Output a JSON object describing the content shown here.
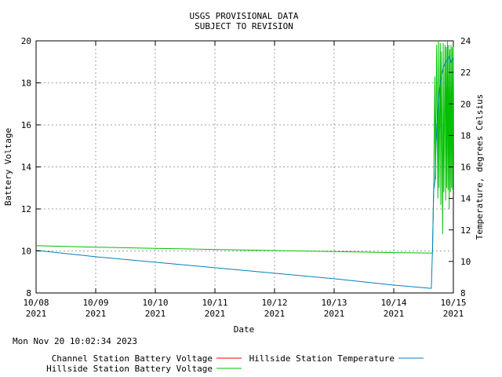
{
  "chart_data": {
    "type": "line",
    "title_lines": [
      "USGS PROVISIONAL DATA",
      "SUBJECT TO REVISION"
    ],
    "xlabel": "Date",
    "ylabel_left": "Battery Voltage",
    "ylabel_right": "Temperature, degrees Celsius",
    "x_ticks": [
      {
        "day": 0,
        "line1": "10/08",
        "line2": "2021"
      },
      {
        "day": 1,
        "line1": "10/09",
        "line2": "2021"
      },
      {
        "day": 2,
        "line1": "10/10",
        "line2": "2021"
      },
      {
        "day": 3,
        "line1": "10/11",
        "line2": "2021"
      },
      {
        "day": 4,
        "line1": "10/12",
        "line2": "2021"
      },
      {
        "day": 5,
        "line1": "10/13",
        "line2": "2021"
      },
      {
        "day": 6,
        "line1": "10/14",
        "line2": "2021"
      },
      {
        "day": 7,
        "line1": "10/15",
        "line2": "2021"
      }
    ],
    "xlim": [
      0,
      7
    ],
    "ylim_left": [
      8,
      20
    ],
    "y_ticks_left": [
      8,
      10,
      12,
      14,
      16,
      18,
      20
    ],
    "ylim_right": [
      8,
      24
    ],
    "y_ticks_right": [
      8,
      10,
      12,
      14,
      16,
      18,
      20,
      22,
      24
    ],
    "grid": true,
    "timestamp": "Mon Nov 20 10:02:34 2023",
    "series": [
      {
        "name": "Channel Station Battery Voltage",
        "color": "#ff0000",
        "axis": "left",
        "x": [],
        "y": []
      },
      {
        "name": "Hillside Station Battery Voltage",
        "color": "#00c000",
        "axis": "left",
        "x": [
          0,
          1,
          2,
          3,
          4,
          5,
          6,
          6.63,
          6.65,
          6.67,
          6.69,
          6.7,
          6.72,
          6.74,
          6.75,
          6.76,
          6.78,
          6.79,
          6.8,
          6.82,
          6.83,
          6.84,
          6.86,
          6.87,
          6.88,
          6.89,
          6.9,
          6.91,
          6.92,
          6.93,
          6.94,
          6.95,
          6.96,
          6.97,
          6.98,
          6.99,
          7.0
        ],
        "y": [
          10.25,
          10.18,
          10.12,
          10.07,
          10.02,
          9.97,
          9.92,
          9.9,
          9.92,
          13.0,
          18.3,
          13.4,
          19.8,
          12.5,
          20.0,
          13.0,
          19.9,
          12.2,
          19.5,
          10.8,
          19.9,
          12.8,
          19.8,
          12.4,
          19.7,
          13.0,
          20.0,
          12.9,
          19.8,
          12.0,
          19.6,
          12.8,
          19.8,
          13.0,
          19.7,
          12.9,
          19.7
        ]
      },
      {
        "name": "Hillside Station Temperature",
        "color": "#0080c0",
        "axis": "right",
        "x": [
          0,
          1,
          2,
          3,
          4,
          5,
          6,
          6.6,
          6.63,
          6.65,
          6.67,
          6.69,
          6.71,
          6.73,
          6.75,
          6.77,
          6.8,
          6.83,
          6.86,
          6.9,
          6.93,
          6.96,
          7.0
        ],
        "y": [
          10.7,
          10.3,
          9.95,
          9.6,
          9.25,
          8.9,
          8.5,
          8.3,
          8.3,
          10.8,
          14.5,
          15.0,
          17.5,
          19.0,
          20.2,
          21.0,
          21.8,
          22.3,
          22.6,
          22.8,
          23.0,
          22.6,
          22.9
        ]
      }
    ]
  }
}
